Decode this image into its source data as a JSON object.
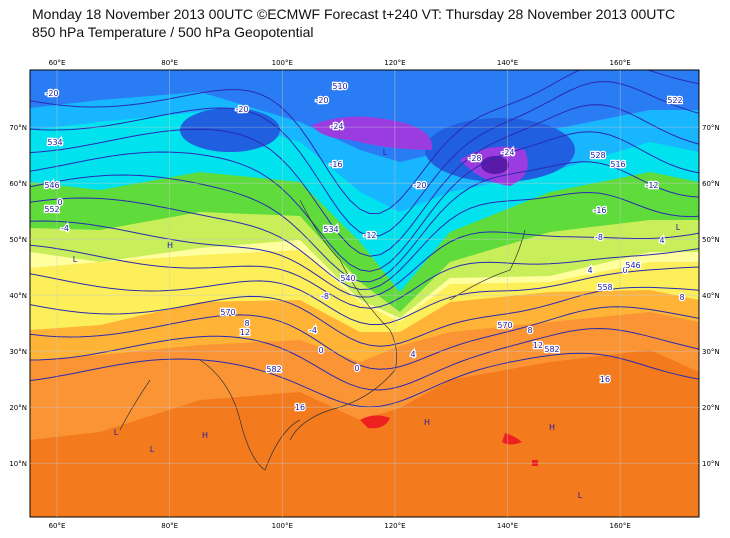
{
  "header": {
    "line1": "Monday 18 November 2013 00UTC ©ECMWF Forecast t+240 VT: Thursday 28 November 2013 00UTC",
    "line2": "850 hPa Temperature / 500 hPa Geopotential"
  },
  "map": {
    "xlim": [
      55.2,
      174
    ],
    "ylim": [
      0.4,
      80.2
    ],
    "xticks": [
      {
        "value": 60,
        "label": "60°E"
      },
      {
        "value": 80,
        "label": "80°E"
      },
      {
        "value": 100,
        "label": "100°E"
      },
      {
        "value": 120,
        "label": "120°E"
      },
      {
        "value": 140,
        "label": "140°E"
      },
      {
        "value": 160,
        "label": "160°E"
      }
    ],
    "yticks": [
      {
        "value": 10,
        "label": "10°N"
      },
      {
        "value": 20,
        "label": "20°N"
      },
      {
        "value": 30,
        "label": "30°N"
      },
      {
        "value": 40,
        "label": "40°N"
      },
      {
        "value": 50,
        "label": "50°N"
      },
      {
        "value": 60,
        "label": "60°N"
      },
      {
        "value": 70,
        "label": "70°N"
      }
    ],
    "contour_labels": [
      "-20",
      "-20",
      "-20",
      "-24",
      "-16",
      "-20",
      "-28",
      "-24",
      "510",
      "522",
      "528",
      "516",
      "-12",
      "-16",
      "534",
      "546",
      "552",
      "0",
      "-4",
      "534",
      "-12",
      "540",
      "-8",
      "-4",
      "0",
      "0",
      "4",
      "570",
      "8",
      "12",
      "582",
      "16",
      "570",
      "8",
      "12",
      "582",
      "16",
      "558",
      "0",
      "546",
      "4",
      "8",
      "4",
      "-8"
    ],
    "pressure_marks": [
      "L",
      "L",
      "H",
      "H",
      "L",
      "H",
      "L",
      "L",
      "L",
      "H"
    ]
  }
}
